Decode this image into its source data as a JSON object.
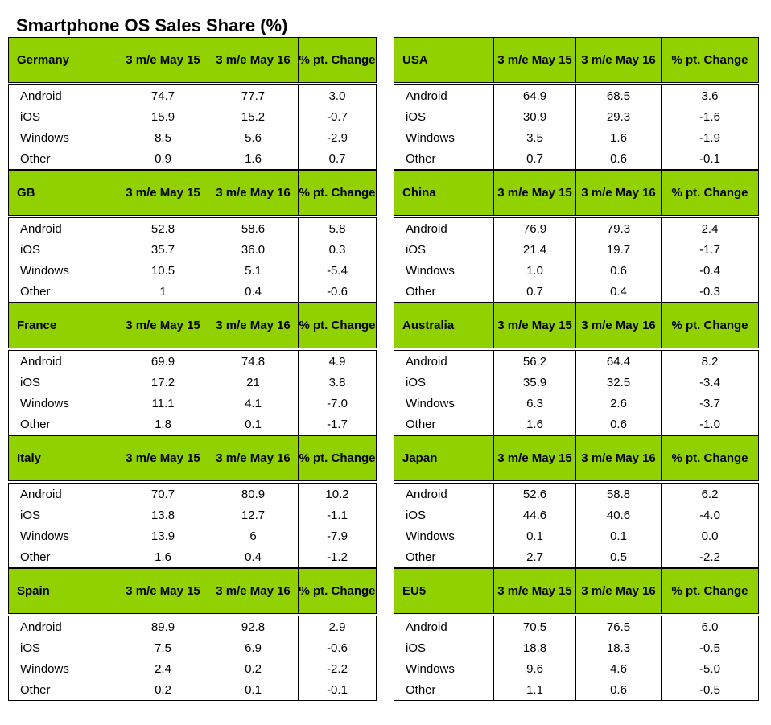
{
  "title": "Smartphone OS Sales Share (%)",
  "colors": {
    "header_bg": "#92d100",
    "border": "#000000",
    "text": "#000000"
  },
  "columns": [
    "3 m/e May 15",
    "3 m/e May 16",
    "% pt. Change"
  ],
  "chart_data": {
    "type": "table",
    "title": "Smartphone OS Sales Share (%)",
    "columns": [
      "3 m/e May 15",
      "3 m/e May 16",
      "% pt. Change"
    ],
    "tables": [
      {
        "country": "Germany",
        "rows": [
          {
            "os": "Android",
            "values": [
              "74.7",
              "77.7",
              "3.0"
            ]
          },
          {
            "os": "iOS",
            "values": [
              "15.9",
              "15.2",
              "-0.7"
            ]
          },
          {
            "os": "Windows",
            "values": [
              "8.5",
              "5.6",
              "-2.9"
            ]
          },
          {
            "os": "Other",
            "values": [
              "0.9",
              "1.6",
              "0.7"
            ]
          }
        ]
      },
      {
        "country": "USA",
        "rows": [
          {
            "os": "Android",
            "values": [
              "64.9",
              "68.5",
              "3.6"
            ]
          },
          {
            "os": "iOS",
            "values": [
              "30.9",
              "29.3",
              "-1.6"
            ]
          },
          {
            "os": "Windows",
            "values": [
              "3.5",
              "1.6",
              "-1.9"
            ]
          },
          {
            "os": "Other",
            "values": [
              "0.7",
              "0.6",
              "-0.1"
            ]
          }
        ]
      },
      {
        "country": "GB",
        "rows": [
          {
            "os": "Android",
            "values": [
              "52.8",
              "58.6",
              "5.8"
            ]
          },
          {
            "os": "iOS",
            "values": [
              "35.7",
              "36.0",
              "0.3"
            ]
          },
          {
            "os": "Windows",
            "values": [
              "10.5",
              "5.1",
              "-5.4"
            ]
          },
          {
            "os": "Other",
            "values": [
              "1",
              "0.4",
              "-0.6"
            ]
          }
        ]
      },
      {
        "country": "China",
        "rows": [
          {
            "os": "Android",
            "values": [
              "76.9",
              "79.3",
              "2.4"
            ]
          },
          {
            "os": "iOS",
            "values": [
              "21.4",
              "19.7",
              "-1.7"
            ]
          },
          {
            "os": "Windows",
            "values": [
              "1.0",
              "0.6",
              "-0.4"
            ]
          },
          {
            "os": "Other",
            "values": [
              "0.7",
              "0.4",
              "-0.3"
            ]
          }
        ]
      },
      {
        "country": "France",
        "rows": [
          {
            "os": "Android",
            "values": [
              "69.9",
              "74.8",
              "4.9"
            ]
          },
          {
            "os": "iOS",
            "values": [
              "17.2",
              "21",
              "3.8"
            ]
          },
          {
            "os": "Windows",
            "values": [
              "11.1",
              "4.1",
              "-7.0"
            ]
          },
          {
            "os": "Other",
            "values": [
              "1.8",
              "0.1",
              "-1.7"
            ]
          }
        ]
      },
      {
        "country": "Australia",
        "rows": [
          {
            "os": "Android",
            "values": [
              "56.2",
              "64.4",
              "8.2"
            ]
          },
          {
            "os": "iOS",
            "values": [
              "35.9",
              "32.5",
              "-3.4"
            ]
          },
          {
            "os": "Windows",
            "values": [
              "6.3",
              "2.6",
              "-3.7"
            ]
          },
          {
            "os": "Other",
            "values": [
              "1.6",
              "0.6",
              "-1.0"
            ]
          }
        ]
      },
      {
        "country": "Italy",
        "rows": [
          {
            "os": "Android",
            "values": [
              "70.7",
              "80.9",
              "10.2"
            ]
          },
          {
            "os": "iOS",
            "values": [
              "13.8",
              "12.7",
              "-1.1"
            ]
          },
          {
            "os": "Windows",
            "values": [
              "13.9",
              "6",
              "-7.9"
            ]
          },
          {
            "os": "Other",
            "values": [
              "1.6",
              "0.4",
              "-1.2"
            ]
          }
        ]
      },
      {
        "country": "Japan",
        "rows": [
          {
            "os": "Android",
            "values": [
              "52.6",
              "58.8",
              "6.2"
            ]
          },
          {
            "os": "iOS",
            "values": [
              "44.6",
              "40.6",
              "-4.0"
            ]
          },
          {
            "os": "Windows",
            "values": [
              "0.1",
              "0.1",
              "0.0"
            ]
          },
          {
            "os": "Other",
            "values": [
              "2.7",
              "0.5",
              "-2.2"
            ]
          }
        ]
      },
      {
        "country": "Spain",
        "rows": [
          {
            "os": "Android",
            "values": [
              "89.9",
              "92.8",
              "2.9"
            ]
          },
          {
            "os": "iOS",
            "values": [
              "7.5",
              "6.9",
              "-0.6"
            ]
          },
          {
            "os": "Windows",
            "values": [
              "2.4",
              "0.2",
              "-2.2"
            ]
          },
          {
            "os": "Other",
            "values": [
              "0.2",
              "0.1",
              "-0.1"
            ]
          }
        ]
      },
      {
        "country": "EU5",
        "rows": [
          {
            "os": "Android",
            "values": [
              "70.5",
              "76.5",
              "6.0"
            ]
          },
          {
            "os": "iOS",
            "values": [
              "18.8",
              "18.3",
              "-0.5"
            ]
          },
          {
            "os": "Windows",
            "values": [
              "9.6",
              "4.6",
              "-5.0"
            ]
          },
          {
            "os": "Other",
            "values": [
              "1.1",
              "0.6",
              "-0.5"
            ]
          }
        ]
      }
    ]
  }
}
